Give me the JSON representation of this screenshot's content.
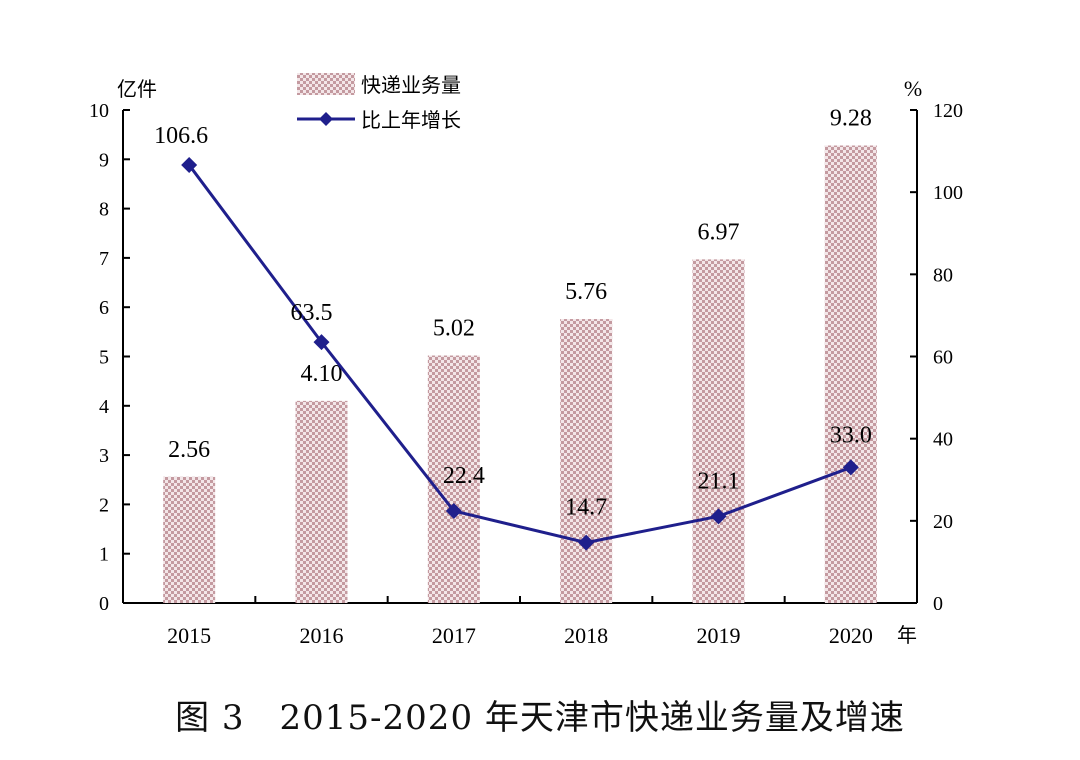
{
  "chart_data": {
    "type": "bar",
    "title": "",
    "categories": [
      "2015",
      "2016",
      "2017",
      "2018",
      "2019",
      "2020"
    ],
    "x_unit": "年",
    "series": [
      {
        "name": "快递业务量",
        "type": "bar",
        "axis": "left",
        "values": [
          2.56,
          4.1,
          5.02,
          5.76,
          6.97,
          9.28
        ],
        "labels": [
          "2.56",
          "4.10",
          "5.02",
          "5.76",
          "6.97",
          "9.28"
        ],
        "color": "#c9a3a8"
      },
      {
        "name": "比上年增长",
        "type": "line",
        "axis": "right",
        "values": [
          106.6,
          63.5,
          22.4,
          14.7,
          21.1,
          33.0
        ],
        "labels": [
          "106.6",
          "63.5",
          "22.4",
          "14.7",
          "21.1",
          "33.0"
        ],
        "color": "#1f1f8c"
      }
    ],
    "y_left": {
      "unit": "亿件",
      "min": 0,
      "max": 10,
      "ticks": [
        "0",
        "1",
        "2",
        "3",
        "4",
        "5",
        "6",
        "7",
        "8",
        "9",
        "10"
      ]
    },
    "y_right": {
      "unit": "%",
      "min": 0,
      "max": 120,
      "ticks": [
        "0",
        "20",
        "40",
        "60",
        "80",
        "100",
        "120"
      ]
    },
    "legend_position": "top-center",
    "grid": false
  },
  "caption": "图 3　2015-2020 年天津市快递业务量及增速"
}
